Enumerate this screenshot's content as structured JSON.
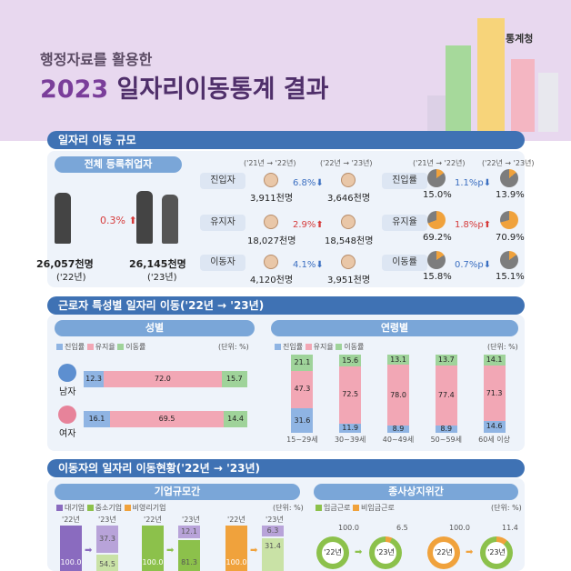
{
  "header": {
    "subtitle": "행정자료를 활용한",
    "title_year": "2023",
    "title_rest": " 일자리이동통계 결과",
    "agency": "통계청"
  },
  "sections": {
    "s1": "일자리 이동 규모",
    "s2": "근로자 특성별 일자리 이동('22년 → '23년)",
    "s3": "이동자의 일자리 이동현황('22년 → '23년)"
  },
  "s1": {
    "total_label": "전체 등록취업자",
    "rate_change": "0.3%",
    "y22_value": "26,057천명",
    "y22_year": "('22년)",
    "y23_value": "26,145천명",
    "y23_year": "('23년)",
    "col_a": "('21년 → '22년)",
    "col_b": "('22년 → '23년)",
    "col_c": "('21년 → '22년)",
    "col_d": "('22년 → '23년)",
    "rows": [
      {
        "label": "진입자",
        "v1": "3,911천명",
        "chg": "6.8%",
        "v2": "3,646천명",
        "dir": "down",
        "rlabel": "진입률",
        "r1": "15.0%",
        "rchg": "1.1%p",
        "r2": "13.9%",
        "rdir": "down"
      },
      {
        "label": "유지자",
        "v1": "18,027천명",
        "chg": "2.9%",
        "v2": "18,548천명",
        "dir": "up",
        "rlabel": "유지율",
        "r1": "69.2%",
        "rchg": "1.8%p",
        "r2": "70.9%",
        "rdir": "up"
      },
      {
        "label": "이동자",
        "v1": "4,120천명",
        "chg": "4.1%",
        "v2": "3,951천명",
        "dir": "down",
        "rlabel": "이동률",
        "r1": "15.8%",
        "rchg": "0.7%p",
        "r2": "15.1%",
        "rdir": "down"
      }
    ]
  },
  "s2": {
    "gender_title": "성별",
    "age_title": "연령별",
    "legend": [
      "진입률",
      "유지율",
      "이동률"
    ],
    "unit": "(단위: %)",
    "colors": {
      "entry": "#8fb4e3",
      "keep": "#f2a7b5",
      "move": "#9fd39a"
    }
  },
  "chart_data": [
    {
      "type": "bar",
      "title": "성별",
      "categories": [
        "남자",
        "여자"
      ],
      "series": [
        {
          "name": "진입률",
          "values": [
            12.3,
            16.1
          ]
        },
        {
          "name": "유지율",
          "values": [
            72.0,
            69.5
          ]
        },
        {
          "name": "이동률",
          "values": [
            15.7,
            14.4
          ]
        }
      ]
    },
    {
      "type": "bar",
      "title": "연령별",
      "categories": [
        "15~29세",
        "30~39세",
        "40~49세",
        "50~59세",
        "60세 이상"
      ],
      "series": [
        {
          "name": "진입률",
          "values": [
            31.6,
            11.9,
            8.9,
            8.9,
            14.6
          ]
        },
        {
          "name": "유지율",
          "values": [
            47.3,
            72.5,
            78.0,
            77.4,
            71.3
          ]
        },
        {
          "name": "이동률",
          "values": [
            21.1,
            15.6,
            13.1,
            13.7,
            14.1
          ]
        }
      ]
    }
  ],
  "s3": {
    "size_title": "기업규모간",
    "status_title": "종사상지위간",
    "size_legend": [
      "대기업",
      "중소기업",
      "비영리기업"
    ],
    "status_legend": [
      "임금근로",
      "비임금근로"
    ],
    "unit": "(단위: %)",
    "groups": [
      {
        "y22": "'22년",
        "y23": "'23년",
        "v22": "100.0",
        "top": "37.3",
        "bottom": "54.5"
      },
      {
        "y22": "'22년",
        "y23": "'23년",
        "v22": "100.0",
        "top": "12.1",
        "bottom": "81.3"
      },
      {
        "y22": "'22년",
        "y23": "'23년",
        "v22": "100.0",
        "top": "6.3",
        "mid": "31.4"
      }
    ],
    "rings": [
      {
        "v22": "100.0",
        "v23": "6.5",
        "y22": "'22년",
        "y23": "'23년"
      },
      {
        "v22": "100.0",
        "v23": "11.4",
        "y22": "'22년",
        "y23": "'23년"
      }
    ]
  }
}
